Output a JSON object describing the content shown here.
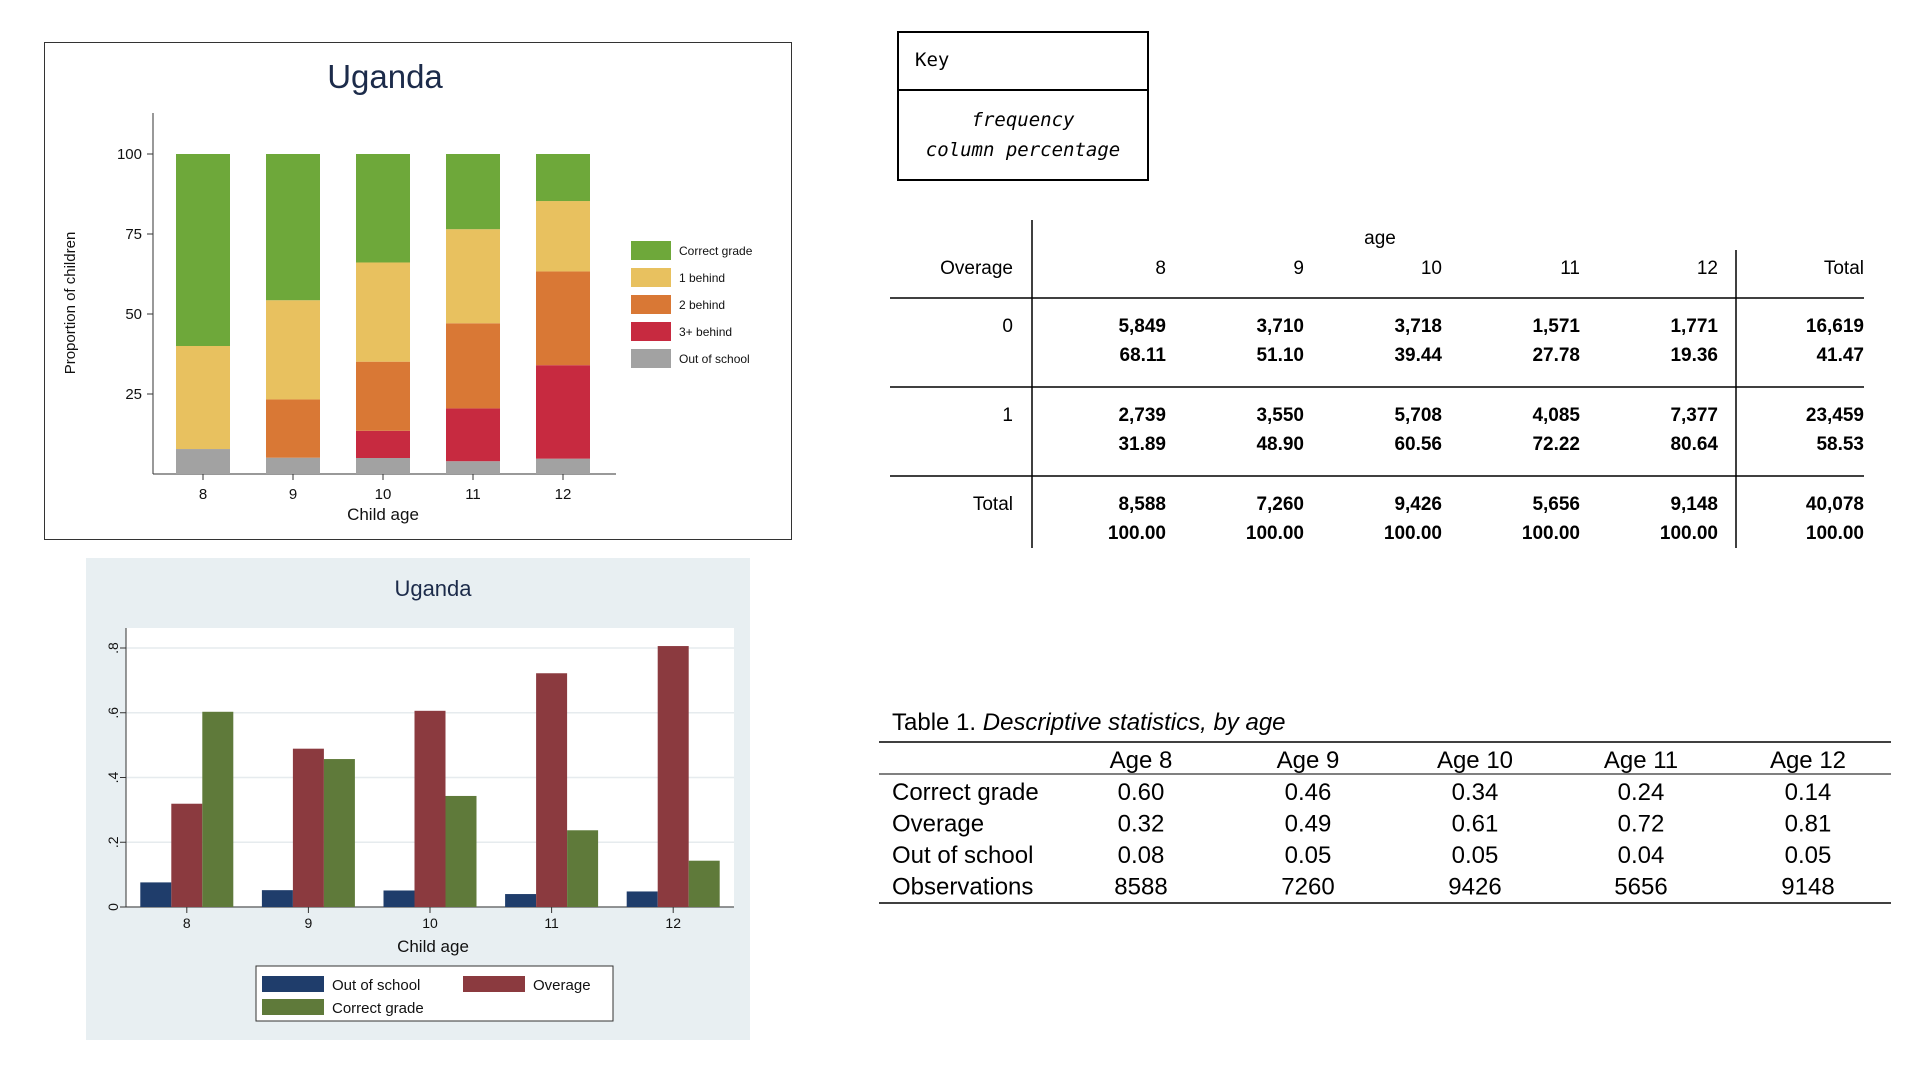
{
  "chart_data": [
    {
      "type": "bar",
      "stacked": true,
      "title": "Uganda",
      "xlabel": "Child age",
      "ylabel": "Proportion of children",
      "categories": [
        "8",
        "9",
        "10",
        "11",
        "12"
      ],
      "yticks": [
        "100",
        "75",
        "50",
        "25"
      ],
      "ylim": [
        0,
        100
      ],
      "legend_position": "right",
      "series": [
        {
          "name": "Out of school",
          "color": "#a2a2a2",
          "values": [
            7.8,
            5.1,
            5.0,
            4.0,
            4.8
          ]
        },
        {
          "name": "3+ behind",
          "color": "#c72a40",
          "values": [
            0,
            0,
            8.5,
            16.5,
            29.2
          ]
        },
        {
          "name": "2 behind",
          "color": "#d97835",
          "values": [
            0,
            18.2,
            21.6,
            26.6,
            29.3
          ]
        },
        {
          "name": "1 behind",
          "color": "#e8c15f",
          "values": [
            32.2,
            31.0,
            31.0,
            29.4,
            22.0
          ]
        },
        {
          "name": "Correct grade",
          "color": "#6ea83a",
          "values": [
            60.0,
            45.7,
            33.9,
            23.5,
            14.7
          ]
        }
      ],
      "legend": [
        "Correct grade",
        "1 behind",
        "2 behind",
        "3+ behind",
        "Out of school"
      ]
    },
    {
      "type": "bar",
      "title": "Uganda",
      "xlabel": "Child age",
      "categories": [
        "8",
        "9",
        "10",
        "11",
        "12"
      ],
      "yticks": [
        "0",
        ".2",
        ".4",
        ".6",
        ".8"
      ],
      "ylim": [
        0,
        0.8
      ],
      "grid": true,
      "legend_position": "bottom",
      "series": [
        {
          "name": "Out of school",
          "color": "#1f3d6b",
          "values": [
            0.076,
            0.052,
            0.051,
            0.04,
            0.048
          ]
        },
        {
          "name": "Overage",
          "color": "#8b3a3f",
          "values": [
            0.319,
            0.489,
            0.606,
            0.722,
            0.806
          ]
        },
        {
          "name": "Correct grade",
          "color": "#5f7a3a",
          "values": [
            0.603,
            0.457,
            0.343,
            0.237,
            0.143
          ]
        }
      ]
    }
  ],
  "key": {
    "title": "Key",
    "line1": "frequency",
    "line2": "column percentage"
  },
  "crosstab": {
    "row_var": "Overage",
    "col_var": "age",
    "columns": [
      "8",
      "9",
      "10",
      "11",
      "12",
      "Total"
    ],
    "rows": [
      {
        "label": "0",
        "freq": [
          "5,849",
          "3,710",
          "3,718",
          "1,571",
          "1,771",
          "16,619"
        ],
        "pct": [
          "68.11",
          "51.10",
          "39.44",
          "27.78",
          "19.36",
          "41.47"
        ]
      },
      {
        "label": "1",
        "freq": [
          "2,739",
          "3,550",
          "5,708",
          "4,085",
          "7,377",
          "23,459"
        ],
        "pct": [
          "31.89",
          "48.90",
          "60.56",
          "72.22",
          "80.64",
          "58.53"
        ]
      },
      {
        "label": "Total",
        "freq": [
          "8,588",
          "7,260",
          "9,426",
          "5,656",
          "9,148",
          "40,078"
        ],
        "pct": [
          "100.00",
          "100.00",
          "100.00",
          "100.00",
          "100.00",
          "100.00"
        ]
      }
    ]
  },
  "desc_table": {
    "caption_prefix": "Table 1.",
    "caption_italic": "Descriptive statistics, by age",
    "headers": [
      "Age 8",
      "Age 9",
      "Age 10",
      "Age 11",
      "Age 12"
    ],
    "rows": [
      {
        "label": "Correct grade",
        "values": [
          "0.60",
          "0.46",
          "0.34",
          "0.24",
          "0.14"
        ]
      },
      {
        "label": "Overage",
        "values": [
          "0.32",
          "0.49",
          "0.61",
          "0.72",
          "0.81"
        ]
      },
      {
        "label": "Out of school",
        "values": [
          "0.08",
          "0.05",
          "0.05",
          "0.04",
          "0.05"
        ]
      },
      {
        "label": "Observations",
        "values": [
          "8588",
          "7260",
          "9426",
          "5656",
          "9148"
        ]
      }
    ]
  }
}
